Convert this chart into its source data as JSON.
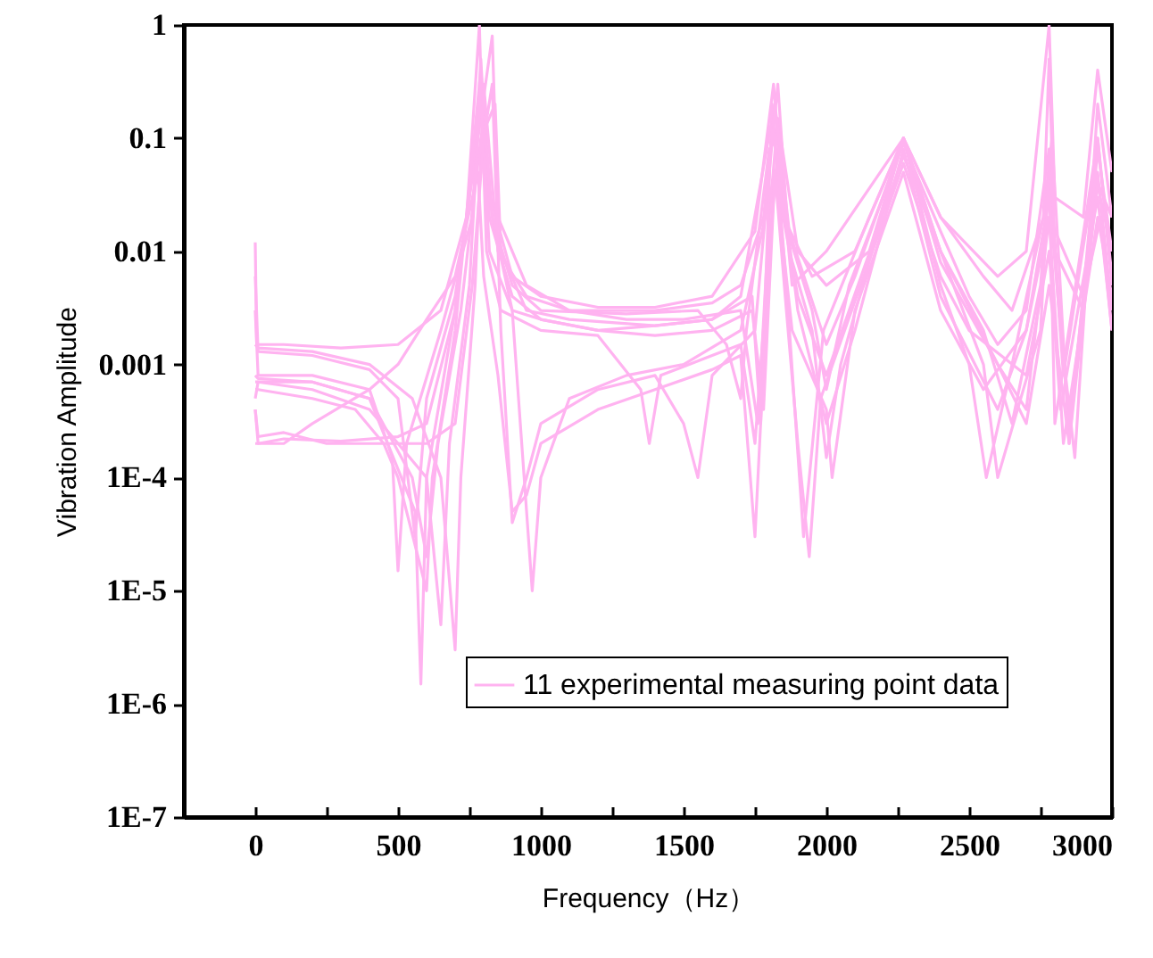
{
  "chart_data": {
    "type": "line",
    "xlabel": "Frequency（Hz）",
    "ylabel": "Vibration Amplitude",
    "log": "y",
    "legend": "bottom right",
    "xlim": [
      -250,
      3000
    ],
    "xticks": [
      0,
      {
        "value": 250,
        "label": null
      },
      500,
      {
        "value": 750,
        "label": null
      },
      1000,
      {
        "value": 1250,
        "label": null
      },
      1500,
      {
        "value": 1750,
        "label": null
      },
      2000,
      {
        "value": 2250,
        "label": null
      },
      2500,
      {
        "value": 2750,
        "label": null
      },
      3000
    ],
    "ylim": [
      1e-07,
      1
    ],
    "yticks": [
      {
        "value": 1e-07,
        "label": "1E-7"
      },
      {
        "value": 1e-06,
        "label": "1E-6"
      },
      {
        "value": 1e-05,
        "label": "1E-5"
      },
      {
        "value": 0.0001,
        "label": "1E-4"
      },
      0.001,
      0.01,
      0.1,
      1
    ],
    "series": [
      {
        "name": "11 experimental measuring point data",
        "color": "#ffb3f0",
        "x": [
          0,
          5,
          100,
          300,
          500,
          650,
          740,
          785,
          800,
          900,
          1000,
          1200,
          1400,
          1600,
          1750,
          1815,
          1850,
          1950,
          2100,
          2270,
          2400,
          2600,
          2700,
          2780,
          2800,
          2900,
          2950,
          3000
        ],
        "values": [
          0.012,
          0.0015,
          0.0015,
          0.0014,
          0.0015,
          0.003,
          0.02,
          1,
          0.05,
          0.006,
          0.004,
          0.0032,
          0.0032,
          0.004,
          0.015,
          0.3,
          0.02,
          0.006,
          0.01,
          0.1,
          0.02,
          0.006,
          0.01,
          1,
          0.03,
          0.02,
          0.4,
          0.05
        ]
      },
      {
        "color": "#ffb3f0",
        "x": [
          0,
          10,
          200,
          400,
          500,
          560,
          600,
          700,
          780,
          830,
          850,
          950,
          1100,
          1300,
          1500,
          1700,
          1760,
          1800,
          1830,
          1900,
          2000,
          2150,
          2270,
          2400,
          2550,
          2650,
          2750,
          2780,
          2830,
          2940,
          3000
        ],
        "values": [
          0.006,
          0.0013,
          0.0012,
          0.0009,
          0.0005,
          3e-05,
          0.0005,
          0.004,
          0.1,
          0.8,
          0.02,
          0.005,
          0.003,
          0.0025,
          0.0025,
          0.003,
          0.0003,
          0.02,
          0.15,
          0.01,
          0.005,
          0.01,
          0.1,
          0.01,
          0.002,
          0.0003,
          0.005,
          0.05,
          0.0008,
          0.05,
          0.01
        ]
      },
      {
        "color": "#ffb3f0",
        "x": [
          0,
          10,
          200,
          400,
          480,
          500,
          530,
          650,
          760,
          790,
          820,
          900,
          1000,
          1200,
          1400,
          1600,
          1740,
          1770,
          1810,
          1860,
          1920,
          1990,
          2150,
          2270,
          2400,
          2500,
          2560,
          2650,
          2760,
          2790,
          2850,
          2950,
          3000
        ],
        "values": [
          0.003,
          0.0008,
          0.0008,
          0.0006,
          0.00015,
          1.5e-05,
          0.0002,
          0.002,
          0.02,
          0.5,
          0.02,
          0.004,
          0.0025,
          0.002,
          0.0022,
          0.0025,
          0.004,
          0.0003,
          0.2,
          0.005,
          3e-05,
          0.002,
          0.02,
          0.1,
          0.005,
          0.001,
          0.0001,
          0.001,
          0.02,
          0.1,
          0.0002,
          0.1,
          0.005
        ]
      },
      {
        "color": "#ffb3f0",
        "x": [
          0,
          10,
          200,
          400,
          560,
          580,
          600,
          700,
          790,
          830,
          900,
          970,
          1000,
          1100,
          1300,
          1500,
          1700,
          1820,
          1880,
          2000,
          2020,
          2100,
          2270,
          2400,
          2550,
          2700,
          2780,
          2850,
          2950,
          3000
        ],
        "values": [
          0.0005,
          0.0007,
          0.0007,
          0.0005,
          5e-05,
          1.5e-06,
          0.0001,
          0.003,
          0.2,
          0.02,
          0.003,
          1e-05,
          0.0001,
          0.0005,
          0.0008,
          0.001,
          0.002,
          0.05,
          0.002,
          0.0004,
          0.0001,
          0.003,
          0.05,
          0.003,
          0.0006,
          0.002,
          0.03,
          0.0003,
          0.05,
          0.003
        ]
      },
      {
        "color": "#ffb3f0",
        "x": [
          0,
          10,
          100,
          300,
          500,
          600,
          700,
          760,
          790,
          810,
          860,
          1000,
          1200,
          1350,
          1380,
          1420,
          1600,
          1700,
          1750,
          1800,
          1830,
          1900,
          2000,
          2100,
          2270,
          2400,
          2600,
          2700,
          2780,
          2830,
          2950,
          3000
        ],
        "values": [
          0.0004,
          0.0002,
          0.00022,
          0.00021,
          0.00023,
          0.0003,
          0.003,
          0.05,
          0.3,
          0.01,
          0.003,
          0.002,
          0.0018,
          0.0006,
          0.0002,
          0.0008,
          0.0012,
          0.0015,
          0.0002,
          0.01,
          0.08,
          0.003,
          0.0003,
          0.002,
          0.08,
          0.004,
          0.0004,
          0.002,
          0.02,
          0.0002,
          0.02,
          0.004
        ]
      },
      {
        "color": "#ffb3f0",
        "x": [
          0,
          15,
          100,
          200,
          400,
          500,
          600,
          700,
          780,
          800,
          850,
          900,
          950,
          1000,
          1200,
          1400,
          1600,
          1700,
          1750,
          1800,
          1820,
          1900,
          2000,
          2270,
          2400,
          2550,
          2600,
          2750,
          2780,
          2800,
          2950,
          3000
        ],
        "values": [
          0.0002,
          0.0002,
          0.0002,
          0.0003,
          0.0006,
          0.001,
          0.0025,
          0.006,
          0.05,
          0.006,
          0.0008,
          5e-05,
          7e-05,
          0.0002,
          0.0004,
          0.0006,
          0.0009,
          0.0012,
          3e-05,
          0.01,
          0.05,
          0.004,
          0.0008,
          0.07,
          0.01,
          0.001,
          0.0001,
          0.002,
          0.05,
          0.0003,
          0.1,
          0.006
        ]
      },
      {
        "color": "#ffb3f0",
        "x": [
          0,
          10,
          200,
          400,
          550,
          600,
          640,
          720,
          790,
          840,
          860,
          950,
          1100,
          1400,
          1600,
          1700,
          1810,
          1850,
          1950,
          2000,
          2080,
          2270,
          2400,
          2500,
          2600,
          2700,
          2780,
          2820,
          2870,
          2950,
          3000
        ],
        "values": [
          0.0008,
          0.00075,
          0.0007,
          0.0005,
          0.0001,
          2e-05,
          0.0002,
          0.003,
          0.1,
          0.2,
          0.01,
          0.003,
          0.0025,
          0.0022,
          0.0025,
          0.004,
          0.15,
          0.02,
          0.003,
          0.0006,
          0.005,
          0.09,
          0.015,
          0.004,
          0.0015,
          0.003,
          0.08,
          0.002,
          0.00015,
          0.2,
          0.02
        ]
      },
      {
        "color": "#ffb3f0",
        "x": [
          0,
          10,
          200,
          350,
          450,
          500,
          600,
          620,
          700,
          790,
          830,
          900,
          1000,
          1300,
          1550,
          1650,
          1700,
          1720,
          1800,
          1830,
          1880,
          2000,
          2270,
          2400,
          2600,
          2700,
          2780,
          2900,
          2960,
          3000
        ],
        "values": [
          0.0006,
          0.0006,
          0.0005,
          0.0004,
          0.0002,
          0.0001,
          1e-05,
          0.0001,
          0.002,
          0.4,
          0.02,
          0.005,
          0.003,
          0.0028,
          0.003,
          0.0015,
          0.0005,
          0.002,
          0.08,
          0.1,
          0.005,
          0.01,
          0.1,
          0.008,
          0.001,
          0.0004,
          0.02,
          0.004,
          0.02,
          0.002
        ]
      },
      {
        "color": "#ffb3f0",
        "x": [
          0,
          10,
          200,
          400,
          600,
          650,
          680,
          750,
          790,
          820,
          900,
          1000,
          1200,
          1400,
          1600,
          1740,
          1780,
          1820,
          1860,
          1900,
          1940,
          1980,
          2270,
          2400,
          2500,
          2700,
          2780,
          2820,
          2950,
          3000
        ],
        "values": [
          0.0007,
          0.0007,
          0.0006,
          0.0004,
          0.0001,
          5e-06,
          0.0002,
          0.005,
          0.3,
          0.01,
          0.003,
          0.0025,
          0.002,
          0.0018,
          0.002,
          0.003,
          0.0004,
          0.05,
          0.003,
          0.0002,
          2e-05,
          0.0005,
          0.06,
          0.006,
          0.002,
          0.0008,
          0.01,
          0.0004,
          0.03,
          0.002
        ]
      },
      {
        "color": "#ffb3f0",
        "x": [
          0,
          10,
          200,
          400,
          550,
          650,
          700,
          720,
          770,
          800,
          850,
          950,
          1100,
          1400,
          1600,
          1700,
          1780,
          1820,
          1870,
          2000,
          2100,
          2270,
          2400,
          2550,
          2650,
          2760,
          2780,
          2800,
          2900,
          2950,
          3000
        ],
        "values": [
          0.0015,
          0.0014,
          0.0013,
          0.001,
          0.0005,
          0.0001,
          3e-06,
          0.0001,
          0.005,
          0.3,
          0.01,
          0.004,
          0.003,
          0.003,
          0.0035,
          0.005,
          0.02,
          0.2,
          0.015,
          0.0015,
          0.006,
          0.1,
          0.02,
          0.006,
          0.003,
          0.02,
          0.5,
          0.01,
          0.003,
          0.08,
          0.01
        ]
      },
      {
        "color": "#ffb3f0",
        "x": [
          0,
          10,
          100,
          250,
          400,
          600,
          700,
          760,
          800,
          830,
          860,
          900,
          950,
          1000,
          1200,
          1400,
          1500,
          1550,
          1600,
          1750,
          1800,
          1830,
          1870,
          1950,
          2000,
          2050,
          2270,
          2400,
          2600,
          2700,
          2780,
          2850,
          2950,
          3000
        ],
        "values": [
          0.0004,
          0.00023,
          0.00025,
          0.0002,
          0.0002,
          0.0002,
          0.0003,
          0.005,
          0.1,
          0.3,
          0.002,
          4e-05,
          0.0001,
          0.0003,
          0.0006,
          0.0008,
          0.0003,
          0.0001,
          0.0008,
          0.002,
          0.05,
          0.3,
          0.01,
          0.002,
          0.00015,
          0.001,
          0.1,
          0.01,
          0.001,
          0.0003,
          0.005,
          0.0002,
          0.04,
          0.02
        ]
      }
    ]
  }
}
